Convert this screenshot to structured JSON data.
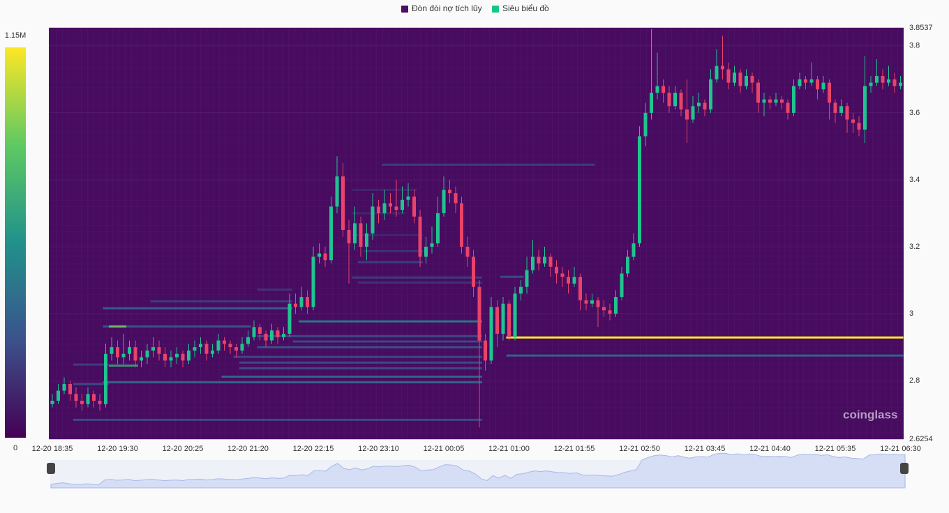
{
  "chart_data": {
    "type": "candlestick",
    "legend": [
      {
        "name": "Đòn đòi nợ tích lũy",
        "color": "#4b0c63"
      },
      {
        "name": "Siêu biểu đồ",
        "color": "#16c784"
      }
    ],
    "up_color": "#1fc48e",
    "down_color": "#e8436a",
    "watermark": "coinglass",
    "ylim": [
      2.6254,
      3.8537
    ],
    "yticks": [
      2.6254,
      2.8,
      3,
      3.2,
      3.4,
      3.6,
      3.8,
      3.8537
    ],
    "grid": true,
    "colorbar": {
      "min": 0,
      "max": {
        "value": 1150000,
        "label": "1.15M"
      }
    },
    "categories": [
      "12-20 18:35",
      null,
      null,
      null,
      null,
      null,
      null,
      null,
      null,
      null,
      null,
      "12-20 19:30",
      null,
      null,
      null,
      null,
      null,
      null,
      null,
      null,
      null,
      null,
      "12-20 20:25",
      null,
      null,
      null,
      null,
      null,
      null,
      null,
      null,
      null,
      null,
      "12-20 21:20",
      null,
      null,
      null,
      null,
      null,
      null,
      null,
      null,
      null,
      null,
      "12-20 22:15",
      null,
      null,
      null,
      null,
      null,
      null,
      null,
      null,
      null,
      null,
      "12-20 23:10",
      null,
      null,
      null,
      null,
      null,
      null,
      null,
      null,
      null,
      null,
      "12-21 00:05",
      null,
      null,
      null,
      null,
      null,
      null,
      null,
      null,
      null,
      null,
      "12-21 01:00",
      null,
      null,
      null,
      null,
      null,
      null,
      null,
      null,
      null,
      null,
      "12-21 01:55",
      null,
      null,
      null,
      null,
      null,
      null,
      null,
      null,
      null,
      null,
      "12-21 02:50",
      null,
      null,
      null,
      null,
      null,
      null,
      null,
      null,
      null,
      null,
      "12-21 03:45",
      null,
      null,
      null,
      null,
      null,
      null,
      null,
      null,
      null,
      null,
      "12-21 04:40",
      null,
      null,
      null,
      null,
      null,
      null,
      null,
      null,
      null,
      null,
      "12-21 05:35",
      null,
      null,
      null,
      null,
      null,
      null,
      null,
      null,
      null,
      null,
      "12-21 06:30"
    ],
    "ohlc": [
      [
        2.73,
        2.76,
        2.72,
        2.74
      ],
      [
        2.74,
        2.79,
        2.73,
        2.77
      ],
      [
        2.77,
        2.81,
        2.76,
        2.79
      ],
      [
        2.79,
        2.8,
        2.74,
        2.76
      ],
      [
        2.76,
        2.78,
        2.72,
        2.74
      ],
      [
        2.74,
        2.76,
        2.71,
        2.73
      ],
      [
        2.73,
        2.78,
        2.72,
        2.76
      ],
      [
        2.76,
        2.77,
        2.72,
        2.74
      ],
      [
        2.74,
        2.76,
        2.71,
        2.73
      ],
      [
        2.73,
        2.91,
        2.72,
        2.88
      ],
      [
        2.88,
        2.93,
        2.86,
        2.9
      ],
      [
        2.9,
        2.92,
        2.85,
        2.87
      ],
      [
        2.87,
        2.94,
        2.85,
        2.88
      ],
      [
        2.88,
        2.92,
        2.86,
        2.9
      ],
      [
        2.9,
        2.92,
        2.84,
        2.86
      ],
      [
        2.86,
        2.89,
        2.84,
        2.87
      ],
      [
        2.87,
        2.91,
        2.85,
        2.89
      ],
      [
        2.89,
        2.93,
        2.87,
        2.9
      ],
      [
        2.9,
        2.92,
        2.86,
        2.88
      ],
      [
        2.88,
        2.9,
        2.84,
        2.86
      ],
      [
        2.86,
        2.89,
        2.84,
        2.87
      ],
      [
        2.87,
        2.9,
        2.85,
        2.88
      ],
      [
        2.88,
        2.89,
        2.84,
        2.86
      ],
      [
        2.86,
        2.91,
        2.85,
        2.89
      ],
      [
        2.89,
        2.92,
        2.87,
        2.9
      ],
      [
        2.9,
        2.93,
        2.88,
        2.91
      ],
      [
        2.91,
        2.92,
        2.86,
        2.88
      ],
      [
        2.88,
        2.91,
        2.87,
        2.89
      ],
      [
        2.89,
        2.94,
        2.88,
        2.92
      ],
      [
        2.92,
        2.93,
        2.89,
        2.91
      ],
      [
        2.91,
        2.92,
        2.88,
        2.9
      ],
      [
        2.9,
        2.91,
        2.87,
        2.89
      ],
      [
        2.89,
        2.93,
        2.88,
        2.91
      ],
      [
        2.91,
        2.95,
        2.9,
        2.93
      ],
      [
        2.93,
        2.98,
        2.92,
        2.96
      ],
      [
        2.96,
        2.97,
        2.92,
        2.94
      ],
      [
        2.94,
        2.95,
        2.9,
        2.92
      ],
      [
        2.92,
        2.97,
        2.91,
        2.95
      ],
      [
        2.95,
        2.96,
        2.91,
        2.93
      ],
      [
        2.93,
        2.96,
        2.92,
        2.94
      ],
      [
        2.94,
        3.06,
        2.93,
        3.03
      ],
      [
        3.03,
        3.06,
        3.0,
        3.02
      ],
      [
        3.02,
        3.08,
        3.01,
        3.05
      ],
      [
        3.05,
        3.07,
        3.0,
        3.02
      ],
      [
        3.02,
        3.2,
        3.01,
        3.17
      ],
      [
        3.17,
        3.21,
        3.15,
        3.18
      ],
      [
        3.18,
        3.2,
        3.14,
        3.16
      ],
      [
        3.16,
        3.35,
        3.15,
        3.32
      ],
      [
        3.32,
        3.47,
        3.3,
        3.41
      ],
      [
        3.41,
        3.45,
        3.23,
        3.25
      ],
      [
        3.25,
        3.28,
        3.09,
        3.21
      ],
      [
        3.21,
        3.32,
        3.19,
        3.27
      ],
      [
        3.27,
        3.29,
        3.17,
        3.2
      ],
      [
        3.2,
        3.27,
        3.16,
        3.24
      ],
      [
        3.24,
        3.36,
        3.22,
        3.32
      ],
      [
        3.32,
        3.34,
        3.27,
        3.3
      ],
      [
        3.3,
        3.37,
        3.28,
        3.33
      ],
      [
        3.33,
        3.36,
        3.3,
        3.32
      ],
      [
        3.32,
        3.4,
        3.29,
        3.31
      ],
      [
        3.31,
        3.38,
        3.3,
        3.34
      ],
      [
        3.34,
        3.39,
        3.32,
        3.35
      ],
      [
        3.35,
        3.37,
        3.27,
        3.29
      ],
      [
        3.29,
        3.31,
        3.14,
        3.17
      ],
      [
        3.17,
        3.23,
        3.15,
        3.2
      ],
      [
        3.2,
        3.26,
        3.18,
        3.21
      ],
      [
        3.21,
        3.35,
        3.2,
        3.3
      ],
      [
        3.3,
        3.41,
        3.29,
        3.37
      ],
      [
        3.37,
        3.4,
        3.33,
        3.36
      ],
      [
        3.36,
        3.38,
        3.3,
        3.33
      ],
      [
        3.33,
        3.35,
        3.18,
        3.2
      ],
      [
        3.2,
        3.23,
        3.14,
        3.17
      ],
      [
        3.17,
        3.19,
        3.05,
        3.08
      ],
      [
        3.08,
        3.1,
        2.66,
        2.92
      ],
      [
        2.92,
        2.94,
        2.83,
        2.86
      ],
      [
        2.86,
        3.05,
        2.85,
        3.02
      ],
      [
        3.02,
        3.04,
        2.9,
        2.94
      ],
      [
        2.94,
        3.05,
        2.92,
        3.03
      ],
      [
        3.03,
        3.04,
        2.92,
        2.93
      ],
      [
        2.93,
        3.08,
        2.92,
        3.06
      ],
      [
        3.06,
        3.1,
        3.04,
        3.08
      ],
      [
        3.08,
        3.17,
        3.06,
        3.13
      ],
      [
        3.13,
        3.22,
        3.12,
        3.17
      ],
      [
        3.17,
        3.19,
        3.13,
        3.15
      ],
      [
        3.15,
        3.2,
        3.14,
        3.17
      ],
      [
        3.17,
        3.18,
        3.11,
        3.14
      ],
      [
        3.14,
        3.16,
        3.09,
        3.12
      ],
      [
        3.12,
        3.14,
        3.08,
        3.11
      ],
      [
        3.11,
        3.13,
        3.06,
        3.09
      ],
      [
        3.09,
        3.14,
        3.08,
        3.11
      ],
      [
        3.11,
        3.12,
        3.01,
        3.04
      ],
      [
        3.04,
        3.06,
        3.01,
        3.03
      ],
      [
        3.03,
        3.06,
        3.02,
        3.04
      ],
      [
        3.04,
        3.05,
        2.96,
        3.02
      ],
      [
        3.02,
        3.04,
        2.99,
        3.01
      ],
      [
        3.01,
        3.03,
        2.98,
        3.0
      ],
      [
        3.0,
        3.07,
        2.99,
        3.05
      ],
      [
        3.05,
        3.14,
        3.04,
        3.12
      ],
      [
        3.12,
        3.19,
        3.11,
        3.17
      ],
      [
        3.17,
        3.24,
        3.16,
        3.21
      ],
      [
        3.21,
        3.56,
        3.2,
        3.53
      ],
      [
        3.53,
        3.63,
        3.5,
        3.6
      ],
      [
        3.6,
        3.85,
        3.58,
        3.66
      ],
      [
        3.66,
        3.78,
        3.64,
        3.68
      ],
      [
        3.68,
        3.7,
        3.63,
        3.66
      ],
      [
        3.66,
        3.68,
        3.6,
        3.62
      ],
      [
        3.62,
        3.68,
        3.61,
        3.66
      ],
      [
        3.66,
        3.67,
        3.59,
        3.61
      ],
      [
        3.61,
        3.7,
        3.51,
        3.58
      ],
      [
        3.58,
        3.65,
        3.57,
        3.62
      ],
      [
        3.62,
        3.66,
        3.6,
        3.63
      ],
      [
        3.63,
        3.64,
        3.59,
        3.61
      ],
      [
        3.61,
        3.73,
        3.6,
        3.7
      ],
      [
        3.7,
        3.79,
        3.69,
        3.74
      ],
      [
        3.74,
        3.83,
        3.7,
        3.73
      ],
      [
        3.73,
        3.75,
        3.67,
        3.69
      ],
      [
        3.69,
        3.74,
        3.68,
        3.72
      ],
      [
        3.72,
        3.73,
        3.66,
        3.68
      ],
      [
        3.68,
        3.73,
        3.67,
        3.71
      ],
      [
        3.71,
        3.72,
        3.66,
        3.69
      ],
      [
        3.69,
        3.7,
        3.6,
        3.63
      ],
      [
        3.63,
        3.66,
        3.59,
        3.64
      ],
      [
        3.64,
        3.65,
        3.61,
        3.63
      ],
      [
        3.63,
        3.66,
        3.62,
        3.64
      ],
      [
        3.64,
        3.65,
        3.61,
        3.63
      ],
      [
        3.63,
        3.64,
        3.58,
        3.6
      ],
      [
        3.6,
        3.7,
        3.59,
        3.68
      ],
      [
        3.68,
        3.72,
        3.67,
        3.7
      ],
      [
        3.7,
        3.71,
        3.67,
        3.69
      ],
      [
        3.69,
        3.75,
        3.68,
        3.7
      ],
      [
        3.7,
        3.71,
        3.64,
        3.67
      ],
      [
        3.67,
        3.71,
        3.66,
        3.69
      ],
      [
        3.69,
        3.7,
        3.58,
        3.63
      ],
      [
        3.63,
        3.64,
        3.57,
        3.6
      ],
      [
        3.6,
        3.64,
        3.59,
        3.62
      ],
      [
        3.62,
        3.63,
        3.54,
        3.58
      ],
      [
        3.58,
        3.6,
        3.54,
        3.57
      ],
      [
        3.57,
        3.59,
        3.53,
        3.55
      ],
      [
        3.55,
        3.77,
        3.51,
        3.68
      ],
      [
        3.68,
        3.71,
        3.66,
        3.69
      ],
      [
        3.69,
        3.76,
        3.68,
        3.71
      ],
      [
        3.71,
        3.73,
        3.67,
        3.69
      ],
      [
        3.69,
        3.74,
        3.68,
        3.7
      ],
      [
        3.7,
        3.72,
        3.66,
        3.68
      ],
      [
        3.68,
        3.71,
        3.67,
        3.69
      ]
    ],
    "liquidations": [
      {
        "price": 3.445,
        "from": 56,
        "to": 91,
        "value": 250000
      },
      {
        "price": 3.37,
        "from": 51,
        "to": 61,
        "value": 150000
      },
      {
        "price": 3.3,
        "from": 51,
        "to": 59,
        "value": 150000
      },
      {
        "price": 3.235,
        "from": 51,
        "to": 62,
        "value": 150000
      },
      {
        "price": 3.187,
        "from": 53,
        "to": 62,
        "value": 200000
      },
      {
        "price": 3.154,
        "from": 52,
        "to": 62,
        "value": 250000
      },
      {
        "price": 3.108,
        "from": 51,
        "to": 72,
        "value": 250000
      },
      {
        "price": 3.093,
        "from": 52,
        "to": 72,
        "value": 200000
      },
      {
        "price": 3.11,
        "from": 76,
        "to": 79,
        "value": 300000
      },
      {
        "price": 3.072,
        "from": 35,
        "to": 40,
        "value": 200000
      },
      {
        "price": 3.037,
        "from": 17,
        "to": 40,
        "value": 250000
      },
      {
        "price": 3.016,
        "from": 9,
        "to": 40,
        "value": 400000
      },
      {
        "price": 2.977,
        "from": 42,
        "to": 72,
        "value": 550000
      },
      {
        "price": 2.962,
        "from": 9,
        "to": 33,
        "value": 350000
      },
      {
        "price": 2.962,
        "from": 10,
        "to": 12,
        "value": 900000
      },
      {
        "price": 2.933,
        "from": 35,
        "to": 72,
        "value": 300000
      },
      {
        "price": 2.917,
        "from": 41,
        "to": 72,
        "value": 300000
      },
      {
        "price": 2.9,
        "from": 35,
        "to": 72,
        "value": 350000
      },
      {
        "price": 2.871,
        "from": 31,
        "to": 72,
        "value": 300000
      },
      {
        "price": 2.854,
        "from": 32,
        "to": 72,
        "value": 300000
      },
      {
        "price": 2.845,
        "from": 10,
        "to": 14,
        "value": 700000
      },
      {
        "price": 2.848,
        "from": 4,
        "to": 9,
        "value": 250000
      },
      {
        "price": 2.837,
        "from": 32,
        "to": 72,
        "value": 300000
      },
      {
        "price": 2.812,
        "from": 29,
        "to": 72,
        "value": 450000
      },
      {
        "price": 2.795,
        "from": 9,
        "to": 72,
        "value": 450000
      },
      {
        "price": 2.79,
        "from": 4,
        "to": 9,
        "value": 300000
      },
      {
        "price": 2.683,
        "from": 4,
        "to": 72,
        "value": 300000
      },
      {
        "price": 2.929,
        "from": 77,
        "to": 143,
        "value": 1150000
      },
      {
        "price": 2.875,
        "from": 77,
        "to": 143,
        "value": 450000
      }
    ]
  }
}
